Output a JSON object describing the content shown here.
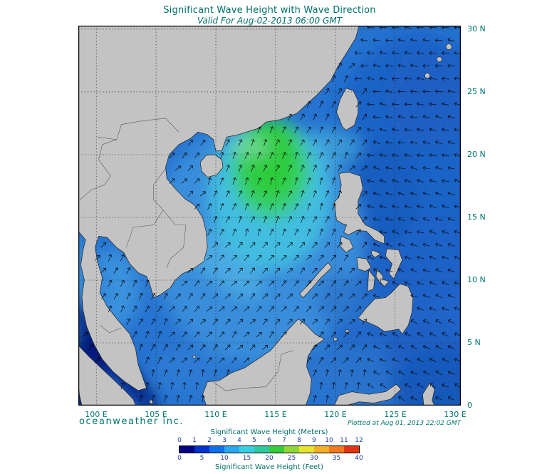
{
  "header": {
    "title": "Significant Wave Height with Wave Direction",
    "subtitle": "Valid For Aug-02-2013 06:00 GMT"
  },
  "map": {
    "lat_labels": [
      "30 N",
      "25 N",
      "20 N",
      "15 N",
      "10 N",
      "5 N",
      "0"
    ],
    "lon_labels": [
      "100 E",
      "105 E",
      "110 E",
      "115 E",
      "120 E",
      "125 E",
      "130 E"
    ],
    "land_color": "#c3c3c3",
    "ocean_base_color": "#2673d0"
  },
  "wave_field": {
    "units": "meters",
    "regions": [
      {
        "name": "northern South China Sea peak (green)",
        "approx_height_m": 4
      },
      {
        "name": "central South China Sea",
        "approx_height_m": 2.5
      },
      {
        "name": "Pacific east of Philippines",
        "approx_height_m": 1.5
      },
      {
        "name": "Gulf of Thailand",
        "approx_height_m": 1.5
      },
      {
        "name": "Malacca Strait (dark navy)",
        "approx_height_m": 0.5
      }
    ]
  },
  "wave_directions": [
    {
      "region": "South China Sea",
      "toward": "northeast"
    },
    {
      "region": "Pacific east of Philippines",
      "toward": "west"
    },
    {
      "region": "Gulf of Thailand / Andaman Sea",
      "toward": "east-northeast"
    }
  ],
  "footer": {
    "brand": "oceanweather inc.",
    "plotted_at": "Plotted at Aug 01, 2013 22:02 GMT"
  },
  "colorbar": {
    "meters_label": "Significant Wave Height (Meters)",
    "feet_label": "Significant Wave Height (Feet)",
    "meters_ticks": [
      "0",
      "1",
      "2",
      "3",
      "4",
      "5",
      "6",
      "7",
      "8",
      "9",
      "10",
      "11",
      "12"
    ],
    "feet_ticks": [
      "0",
      "5",
      "10",
      "15",
      "20",
      "25",
      "30",
      "35",
      "40"
    ],
    "palette": [
      "#000080",
      "#0032cc",
      "#0f6fe8",
      "#2ba6f0",
      "#38cfe0",
      "#2fc9a0",
      "#37cc3a",
      "#90d838",
      "#e8e434",
      "#f2b02c",
      "#f1791f",
      "#e03515"
    ]
  },
  "accent_text_color": "#00756e",
  "tick_number_color": "#22409e"
}
